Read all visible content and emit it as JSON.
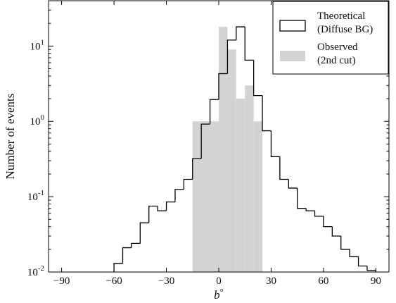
{
  "chart_data": {
    "type": "step-histogram",
    "xlabel": "b°",
    "ylabel": "Number of events",
    "xlim": [
      -97.5,
      97.5
    ],
    "ylim": [
      0.01,
      40
    ],
    "yscale": "log",
    "grid": false,
    "legend_position": "top-right",
    "xticks": [
      -90,
      -60,
      -30,
      0,
      30,
      60,
      90
    ],
    "xtick_labels": [
      "−90",
      "−60",
      "−30",
      "0",
      "30",
      "60",
      "90"
    ],
    "yticks": [
      {
        "value": 0.01,
        "base": "10",
        "exp": "-2"
      },
      {
        "value": 0.1,
        "base": "10",
        "exp": "-1"
      },
      {
        "value": 1,
        "base": "10",
        "exp": "0"
      },
      {
        "value": 10,
        "base": "10",
        "exp": "1"
      }
    ],
    "bin_width": 5,
    "series": [
      {
        "name": "Theoretical\n(Diffuse BG)",
        "legend_lines": [
          "Theoretical",
          "(Diffuse BG)"
        ],
        "style": "step",
        "color": "#000000",
        "bin_edges_start": -60,
        "values": [
          0.013,
          0.021,
          0.024,
          0.045,
          0.075,
          0.065,
          0.085,
          0.125,
          0.17,
          0.32,
          0.92,
          1.95,
          4.3,
          12,
          18,
          6.5,
          2.2,
          0.75,
          0.34,
          0.17,
          0.13,
          0.07,
          0.065,
          0.055,
          0.04,
          0.03,
          0.02,
          0.016,
          0.012,
          0.0105
        ]
      },
      {
        "name": "Observed\n(2nd cut)",
        "legend_lines": [
          "Observed",
          "(2nd cut)"
        ],
        "style": "filled",
        "color": "#d3d3d3",
        "bin_edges_start": -15,
        "values": [
          1,
          1,
          1,
          18,
          9,
          2,
          3,
          1
        ]
      }
    ]
  }
}
